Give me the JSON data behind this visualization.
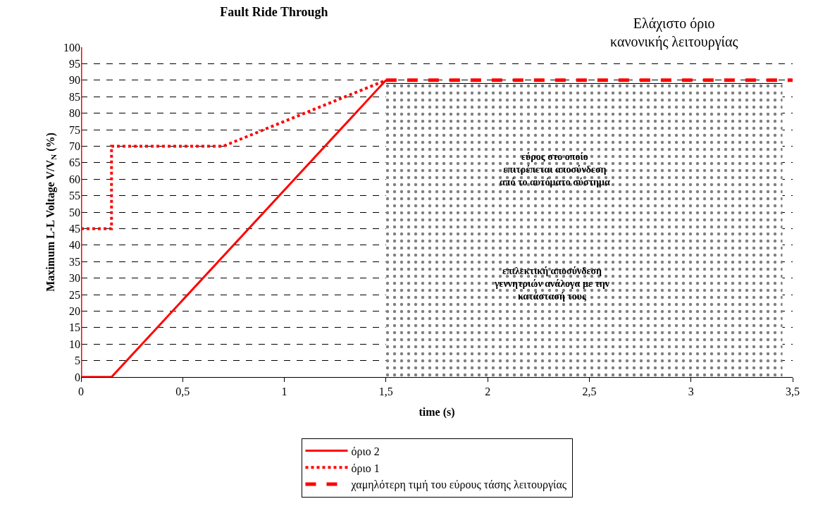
{
  "chart_data": {
    "type": "line",
    "title": "Fault Ride Through",
    "xlabel": "time (s)",
    "ylabel": "Maximum L-L Voltage V/V$_{N}$ (%)",
    "series": [
      {
        "name": "όριο 2",
        "color": "#ff0000",
        "line_style": "solid",
        "x": [
          0,
          0,
          0.15,
          1.5
        ],
        "values": [
          100,
          0,
          0,
          90
        ]
      },
      {
        "name": "όριο 1",
        "color": "#ff0000",
        "line_style": "dotted",
        "x": [
          0,
          0.15,
          0.15,
          0.7,
          1.5
        ],
        "values": [
          45,
          45,
          70,
          70,
          90
        ]
      },
      {
        "name": "χαμηλότερη τιμή του εύρους τάσης λειτουργίας",
        "color": "#ff0000",
        "line_style": "dashed",
        "x": [
          1.5,
          3.5
        ],
        "values": [
          90,
          90
        ]
      },
      {
        "type": "area",
        "color": "#000000",
        "x": [
          1.5,
          3.45
        ],
        "values": [
          89,
          89
        ]
      }
    ],
    "annotations": [
      "εύρος στο οποίο\nεπιτρέπεται αποσύνδεση\nαπό το αυτόματο σύστημα",
      "επιλεκτική αποσύνδεση\nγεννητριών ανάλογα με την\nκατάστασή τους",
      "Ελάχιστο όριο\nκανονικής λειτουργίας"
    ],
    "xlim": [
      0,
      3.5
    ],
    "xticks": [
      0,
      {
        "value": 0.5,
        "label": "0,5"
      },
      1,
      {
        "value": 1.5,
        "label": "1,5"
      },
      2,
      {
        "value": 2.5,
        "label": "2,5"
      },
      3,
      {
        "value": 3.5,
        "label": "3,5"
      }
    ],
    "ylim": [
      0,
      100
    ],
    "yticks": [
      0,
      5,
      10,
      15,
      20,
      25,
      30,
      35,
      40,
      45,
      50,
      55,
      60,
      65,
      70,
      75,
      80,
      85,
      90,
      95,
      100
    ],
    "grid": "y",
    "legend": "bottom",
    "marker": "none"
  }
}
